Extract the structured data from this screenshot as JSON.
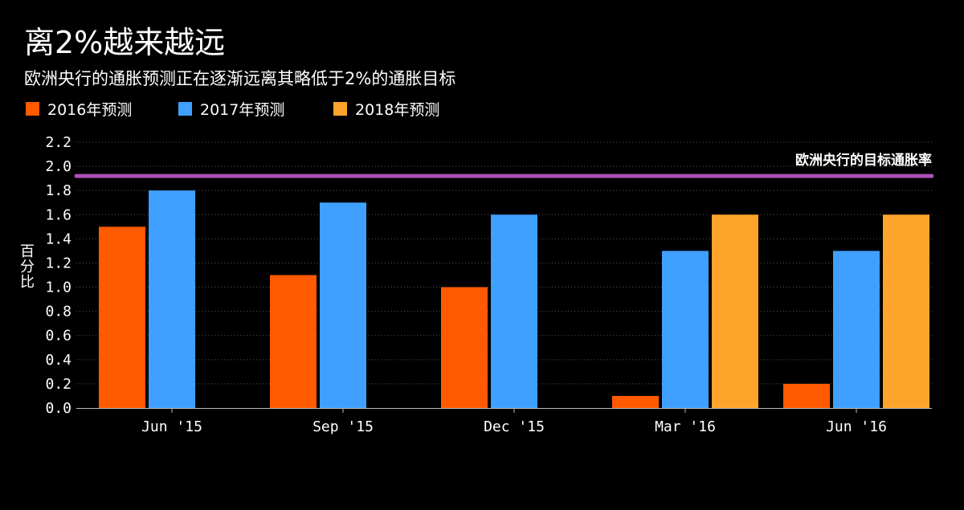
{
  "chart_data": {
    "type": "bar",
    "title": "离2%越来越远",
    "subtitle": "欧洲央行的通胀预测正在逐渐远离其略低于2%的通胀目标",
    "ylabel": "百分比",
    "ylim": [
      0,
      2.2
    ],
    "yticks": [
      "0.0",
      "0.2",
      "0.4",
      "0.6",
      "0.8",
      "1.0",
      "1.2",
      "1.4",
      "1.6",
      "1.8",
      "2.0",
      "2.2"
    ],
    "categories": [
      "Jun '15",
      "Sep '15",
      "Dec '15",
      "Mar '16",
      "Jun '16"
    ],
    "series": [
      {
        "name": "2016年预测",
        "color": "#ff5a00",
        "values": [
          1.5,
          1.1,
          1.0,
          0.1,
          0.2
        ]
      },
      {
        "name": "2017年预测",
        "color": "#3fa0ff",
        "values": [
          1.8,
          1.7,
          1.6,
          1.3,
          1.3
        ]
      },
      {
        "name": "2018年预测",
        "color": "#ffa42b",
        "values": [
          null,
          null,
          null,
          1.6,
          1.6
        ]
      }
    ],
    "reference_line": {
      "label": "欧洲央行的目标通胀率",
      "value": 1.92,
      "color": "#b04fb5"
    },
    "grid": true,
    "legend_position": "top-left"
  }
}
